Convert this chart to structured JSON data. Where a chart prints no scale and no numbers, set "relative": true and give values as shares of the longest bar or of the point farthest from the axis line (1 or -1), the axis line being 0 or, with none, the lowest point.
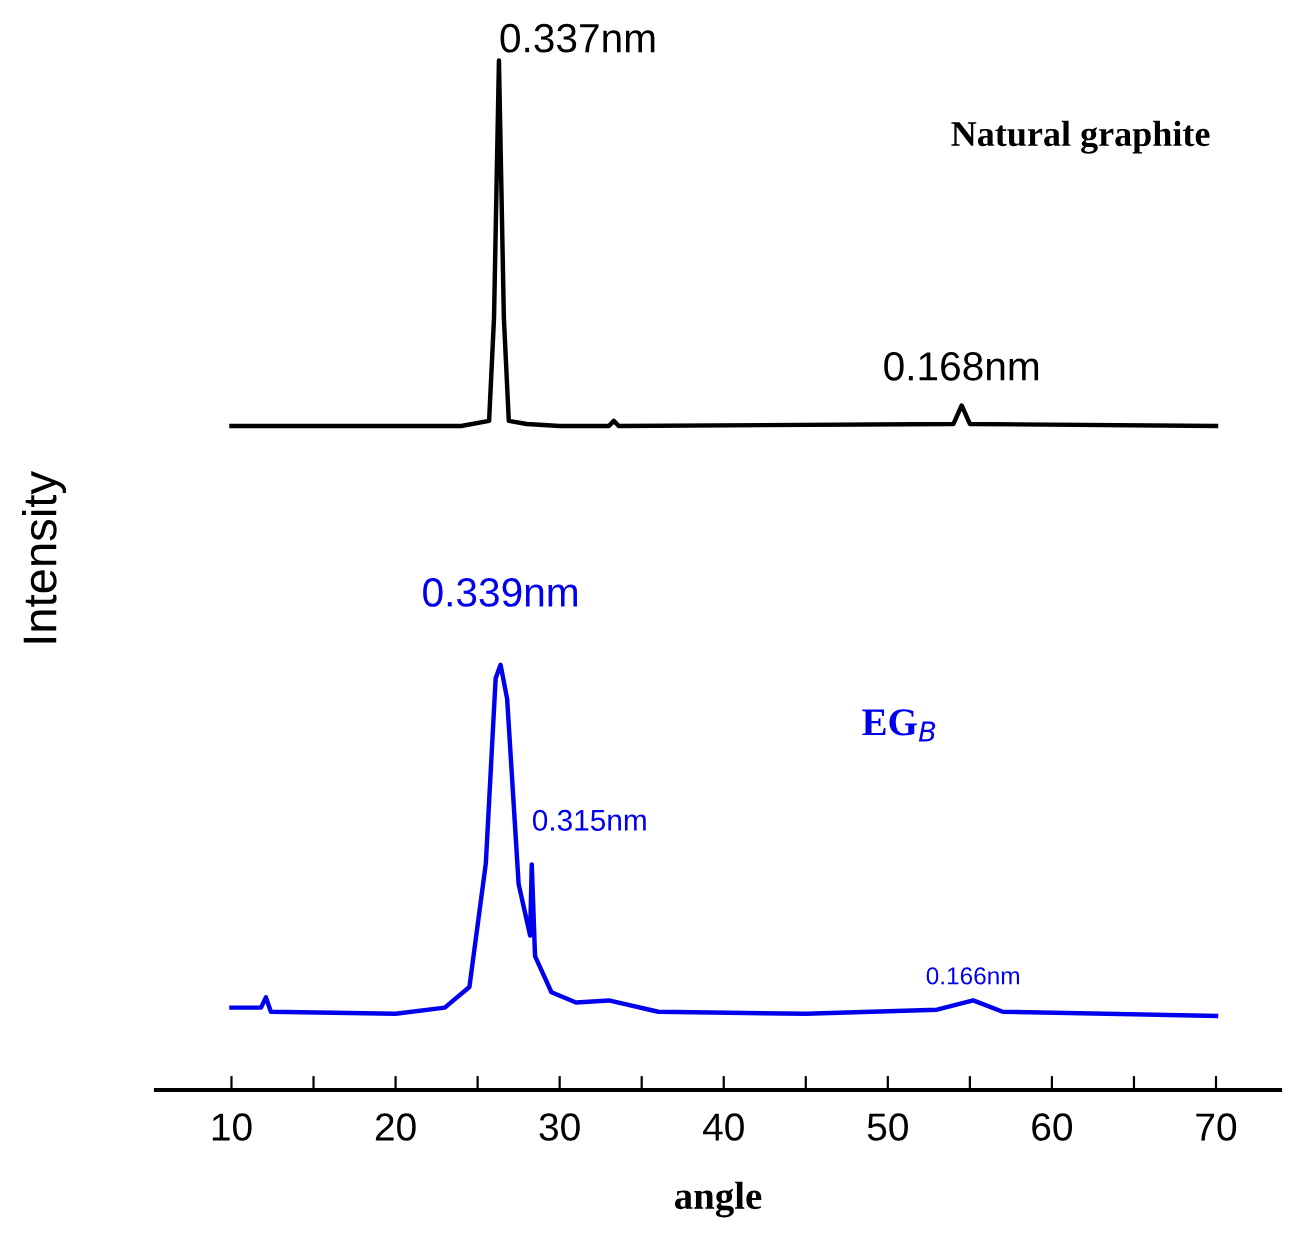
{
  "chart_data": {
    "type": "line",
    "relative": true,
    "xlabel": "angle",
    "ylabel": "Intensity",
    "xlim": [
      5.4,
      73.9
    ],
    "xticks": [
      10,
      {
        "value": 15,
        "label": null
      },
      20,
      {
        "value": 25,
        "label": null
      },
      30,
      {
        "value": 35,
        "label": null
      },
      40,
      {
        "value": 45,
        "label": null
      },
      50,
      {
        "value": 55,
        "label": null
      },
      60,
      {
        "value": 65,
        "label": null
      },
      70
    ],
    "grid": false,
    "legend": false,
    "marker": "none",
    "line_style": "solid",
    "series": [
      {
        "name": "Natural graphite",
        "color": "#000000",
        "x": [
          10,
          24,
          25.7,
          26.0,
          26.3,
          26.6,
          26.9,
          28,
          30,
          33,
          33.3,
          33.6,
          54,
          54.5,
          55,
          70
        ],
        "values": [
          0.645,
          0.645,
          0.65,
          0.75,
          1.0,
          0.75,
          0.65,
          0.647,
          0.645,
          0.645,
          0.65,
          0.645,
          0.647,
          0.665,
          0.647,
          0.645
        ]
      },
      {
        "name": "EG$_{B}$",
        "color": "#0000ee",
        "x": [
          10,
          11.8,
          12.1,
          12.4,
          20,
          23,
          24.5,
          25.5,
          26.1,
          26.4,
          26.8,
          27.5,
          28.2,
          28.3,
          28.5,
          29.5,
          31,
          33,
          36,
          45,
          53,
          55.2,
          57,
          70
        ],
        "values": [
          0.08,
          0.08,
          0.09,
          0.076,
          0.074,
          0.08,
          0.1,
          0.22,
          0.4,
          0.413,
          0.38,
          0.2,
          0.15,
          0.219,
          0.13,
          0.095,
          0.085,
          0.087,
          0.076,
          0.074,
          0.078,
          0.087,
          0.076,
          0.072
        ]
      }
    ],
    "annotations": [
      {
        "text": "0.337nm",
        "x": 26.3,
        "y": 1.0
      },
      {
        "text": "0.168nm",
        "x": 54.5,
        "y": 0.665
      },
      {
        "text": "0.339nm",
        "x": 26.4,
        "y": 0.413
      },
      {
        "text": "0.315nm",
        "x": 28.3,
        "y": 0.219
      },
      {
        "text": "0.166nm",
        "x": 55.2,
        "y": 0.087
      }
    ]
  }
}
